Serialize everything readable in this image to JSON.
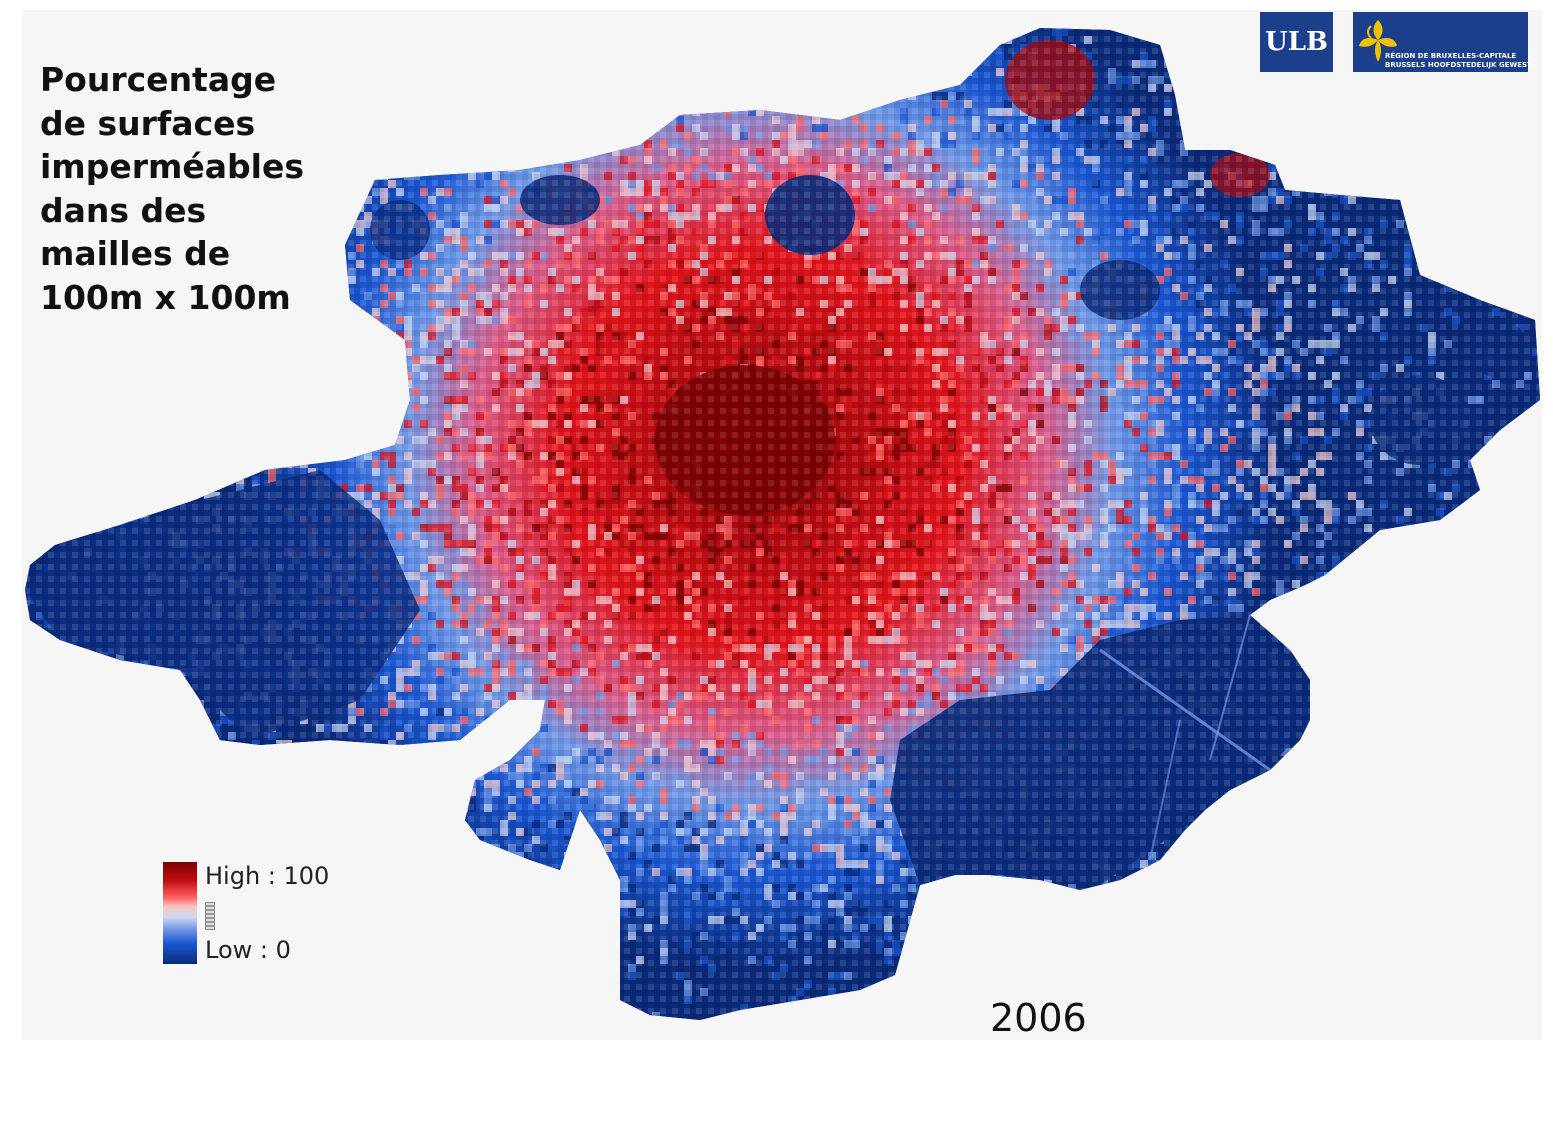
{
  "title_lines": [
    "Pourcentage",
    "de surfaces",
    "imperméables",
    "dans des",
    "mailles de",
    "100m x 100m"
  ],
  "year": "2006",
  "legend": {
    "high_label": "High : 100",
    "low_label": "Low : 0",
    "high_value": 100,
    "low_value": 0,
    "colors": {
      "high": "#7a0000",
      "mid_high": "#e0141b",
      "mid": "#e6e6f0",
      "mid_low": "#1a56d1",
      "low": "#0a2a7a"
    }
  },
  "logos": {
    "ulb": "ULB",
    "region_line1": "RÉGION DE BRUXELLES-CAPITALE",
    "region_line2": "BRUSSELS HOOFDSTEDELIJK GEWEST"
  },
  "icons": {
    "region": "iris-flower-icon"
  }
}
